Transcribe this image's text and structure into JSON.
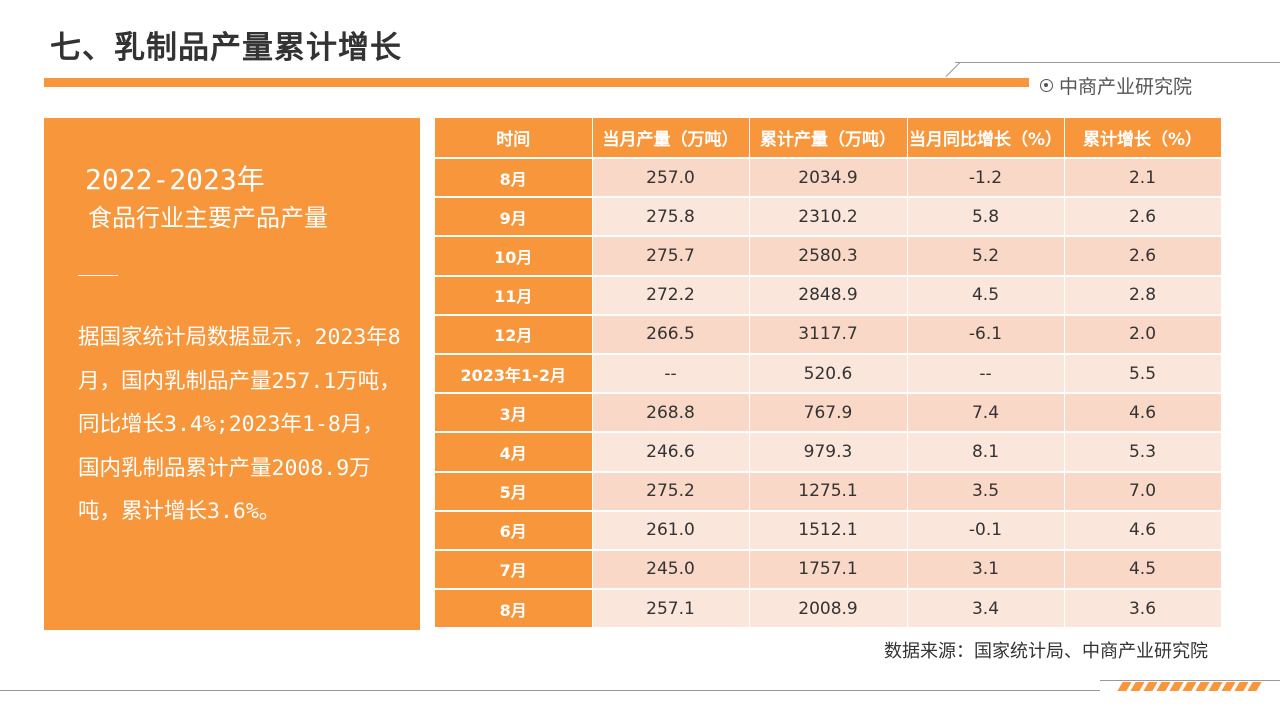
{
  "header": {
    "title": "七、乳制品产量累计增长",
    "brand": "中商产业研究院",
    "accent_color": "#f7963b"
  },
  "panel": {
    "year": "2022-2023年",
    "subtitle": "食品行业主要产品产量",
    "description": "据国家统计局数据显示，2023年8月，国内乳制品产量257.1万吨，同比增长3.4%;2023年1-8月，国内乳制品累计产量2008.9万吨，累计增长3.6%。"
  },
  "table": {
    "columns": [
      "时间",
      "当月产量（万吨）",
      "累计产量（万吨）",
      "当月同比增长（%）",
      "累计增长（%）"
    ],
    "rows": [
      [
        "8月",
        "257.0",
        "2034.9",
        "-1.2",
        "2.1"
      ],
      [
        "9月",
        "275.8",
        "2310.2",
        "5.8",
        "2.6"
      ],
      [
        "10月",
        "275.7",
        "2580.3",
        "5.2",
        "2.6"
      ],
      [
        "11月",
        "272.2",
        "2848.9",
        "4.5",
        "2.8"
      ],
      [
        "12月",
        "266.5",
        "3117.7",
        "-6.1",
        "2.0"
      ],
      [
        "2023年1-2月",
        "--",
        "520.6",
        "--",
        "5.5"
      ],
      [
        "3月",
        "268.8",
        "767.9",
        "7.4",
        "4.6"
      ],
      [
        "4月",
        "246.6",
        "979.3",
        "8.1",
        "5.3"
      ],
      [
        "5月",
        "275.2",
        "1275.1",
        "3.5",
        "7.0"
      ],
      [
        "6月",
        "261.0",
        "1512.1",
        "-0.1",
        "4.6"
      ],
      [
        "7月",
        "245.0",
        "1757.1",
        "3.1",
        "4.5"
      ],
      [
        "8月",
        "257.1",
        "2008.9",
        "3.4",
        "3.6"
      ]
    ]
  },
  "footer": {
    "source": "数据来源：国家统计局、中商产业研究院"
  }
}
